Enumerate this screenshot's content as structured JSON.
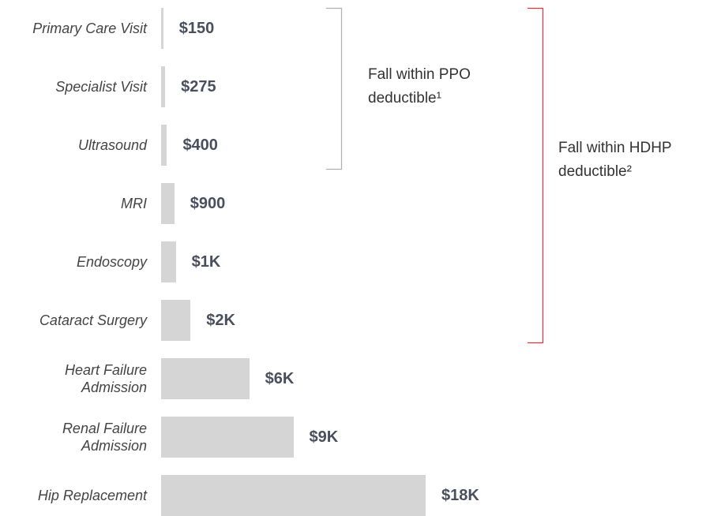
{
  "chart_data": {
    "type": "bar",
    "orientation": "horizontal",
    "categories": [
      "Primary Care Visit",
      "Specialist Visit",
      "Ultrasound",
      "MRI",
      "Endoscopy",
      "Cataract Surgery",
      "Heart Failure Admission",
      "Renal Failure Admission",
      "Hip Replacement"
    ],
    "values": [
      150,
      275,
      400,
      900,
      1000,
      2000,
      6000,
      9000,
      18000
    ],
    "value_labels": [
      "$150",
      "$275",
      "$400",
      "$900",
      "$1K",
      "$2K",
      "$6K",
      "$9K",
      "$18K"
    ],
    "color": "#d5d5d5",
    "annotations": [
      {
        "text": "Fall within PPO deductible¹",
        "color": "#b0b0b0"
      },
      {
        "text": "Fall within HDHP deductible²",
        "color": "#d9343f"
      }
    ]
  }
}
